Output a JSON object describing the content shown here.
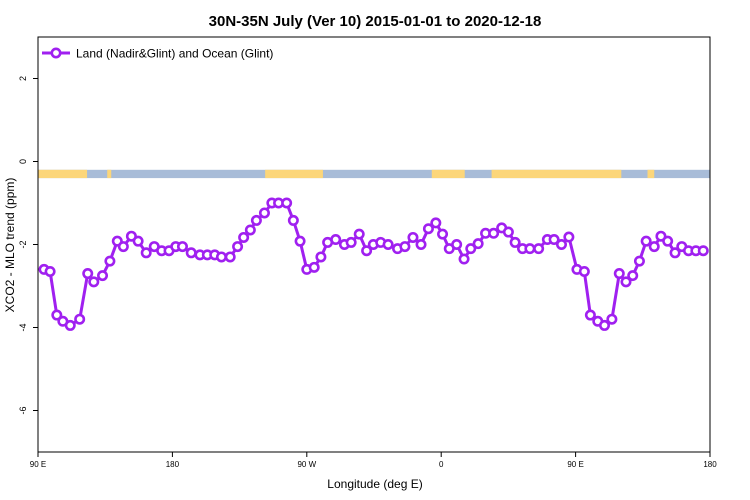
{
  "chart_data": {
    "type": "line",
    "title": "30N-35N July (Ver 10)   2015-01-01 to 2020-12-18",
    "xlabel": "Longitude (deg E)",
    "ylabel": "XCO2 - MLO trend (ppm)",
    "xlim": [
      0,
      100
    ],
    "ylim": [
      -7,
      3
    ],
    "yticks": [
      2,
      0,
      -2,
      -4,
      -6
    ],
    "xticks": [
      {
        "x": 0,
        "label": "90 E"
      },
      {
        "x": 20,
        "label": "180"
      },
      {
        "x": 40,
        "label": "90 W"
      },
      {
        "x": 60,
        "label": "0"
      },
      {
        "x": 80,
        "label": "90 E"
      },
      {
        "x": 100,
        "label": "180"
      }
    ],
    "legend": {
      "position": "top-left",
      "label": "Land (Nadir&Glint) and Ocean (Glint)"
    },
    "map_strip": {
      "y_top": -0.2,
      "y_bottom": -0.4,
      "ocean_color": "#a8bcd8",
      "land_color": "#fcd67a",
      "land_ranges": [
        [
          0,
          7.3
        ],
        [
          10.3,
          10.9
        ],
        [
          33.8,
          42.4
        ],
        [
          58.6,
          63.5
        ],
        [
          67.5,
          86.8
        ],
        [
          90.7,
          91.7
        ]
      ]
    },
    "series": [
      {
        "name": "Land (Nadir&Glint) and Ocean (Glint)",
        "color": "#a020f0",
        "x": [
          0.9,
          1.8,
          2.8,
          3.7,
          4.8,
          6.2,
          7.4,
          8.3,
          9.6,
          10.7,
          11.8,
          12.7,
          13.9,
          14.9,
          16.1,
          17.3,
          18.4,
          19.5,
          20.5,
          21.5,
          22.8,
          24.1,
          25.2,
          26.3,
          27.3,
          28.6,
          29.7,
          30.6,
          31.6,
          32.5,
          33.7,
          34.8,
          35.8,
          37.0,
          38.0,
          39.0,
          40.0,
          41.1,
          42.1,
          43.1,
          44.3,
          45.6,
          46.6,
          47.8,
          48.9,
          49.9,
          51.0,
          52.1,
          53.5,
          54.6,
          55.8,
          57.0,
          58.1,
          59.2,
          60.2,
          61.2,
          62.3,
          63.4,
          64.4,
          65.5,
          66.6,
          67.8,
          69.0,
          70.0,
          71.0,
          72.1,
          73.2,
          74.5,
          75.8,
          76.8,
          77.9,
          79.0,
          80.2,
          81.3,
          82.2,
          83.3,
          84.3,
          85.4,
          86.5,
          87.5,
          88.5,
          89.5,
          90.5,
          91.7,
          92.7,
          93.7,
          94.8,
          95.8,
          96.8,
          97.9,
          99.0
        ],
        "y": [
          -2.6,
          -2.65,
          -3.7,
          -3.85,
          -3.95,
          -3.8,
          -2.7,
          -2.9,
          -2.75,
          -2.4,
          -1.92,
          -2.05,
          -1.8,
          -1.92,
          -2.2,
          -2.05,
          -2.15,
          -2.15,
          -2.05,
          -2.05,
          -2.2,
          -2.25,
          -2.25,
          -2.25,
          -2.3,
          -2.3,
          -2.05,
          -1.83,
          -1.65,
          -1.42,
          -1.24,
          -1.0,
          -1.0,
          -1.0,
          -1.42,
          -1.92,
          -2.6,
          -2.55,
          -2.3,
          -1.95,
          -1.88,
          -2.0,
          -1.95,
          -1.75,
          -2.15,
          -2.0,
          -1.95,
          -2.0,
          -2.1,
          -2.05,
          -1.83,
          -2.0,
          -1.62,
          -1.48,
          -1.75,
          -2.1,
          -2.0,
          -2.35,
          -2.1,
          -1.98,
          -1.73,
          -1.73,
          -1.6,
          -1.7,
          -1.95,
          -2.1,
          -2.1,
          -2.1,
          -1.88,
          -1.88,
          -2.0,
          -1.82,
          -2.6,
          -2.65,
          -3.7,
          -3.85,
          -3.95,
          -3.8,
          -2.7,
          -2.9,
          -2.75,
          -2.4,
          -1.92,
          -2.05,
          -1.8,
          -1.92,
          -2.2,
          -2.05,
          -2.15,
          -2.15,
          -2.15
        ]
      }
    ]
  }
}
